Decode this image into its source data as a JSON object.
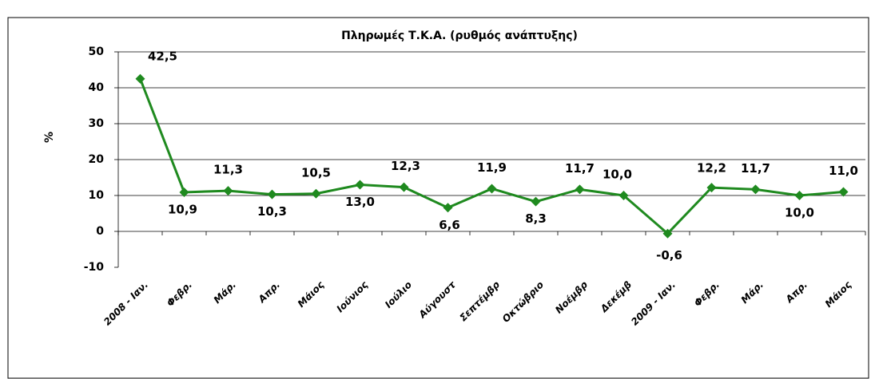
{
  "chart_data": {
    "type": "line",
    "title": "Πληρωμές Τ.Κ.Α. (ρυθμός ανάπτυξης)",
    "ylabel": "%",
    "categories": [
      "2008 - Ιαν.",
      "Φεβρ.",
      "Μάρ.",
      "Απρ.",
      "Μάιος",
      "Ιούνιος",
      "Ιούλιο",
      "Αύγουστ",
      "Σεπτέμβρ",
      "Οκτώβριο",
      "Νοέμβρ",
      "Δεκέμβ",
      "2009 - Ιαν.",
      "Φεβρ.",
      "Μάρ.",
      "Απρ.",
      "Μάιος"
    ],
    "series": [
      {
        "name": "Πληρωμές Τ.Κ.Α.",
        "color": "#1f8a1f",
        "values": [
          42.5,
          10.9,
          11.3,
          10.3,
          10.5,
          13.0,
          12.3,
          6.6,
          11.9,
          8.3,
          11.7,
          10.0,
          -0.6,
          12.2,
          11.7,
          10.0,
          11.0
        ],
        "value_labels": [
          "42,5",
          "10,9",
          "11,3",
          "10,3",
          "10,5",
          "13,0",
          "12,3",
          "6,6",
          "11,9",
          "8,3",
          "11,7",
          "10,0",
          "-0,6",
          "12,2",
          "11,7",
          "10,0",
          "11,0"
        ]
      }
    ],
    "ylim": [
      -10,
      50
    ],
    "yticks": [
      -10,
      0,
      10,
      20,
      30,
      40,
      50
    ],
    "grid": true
  }
}
